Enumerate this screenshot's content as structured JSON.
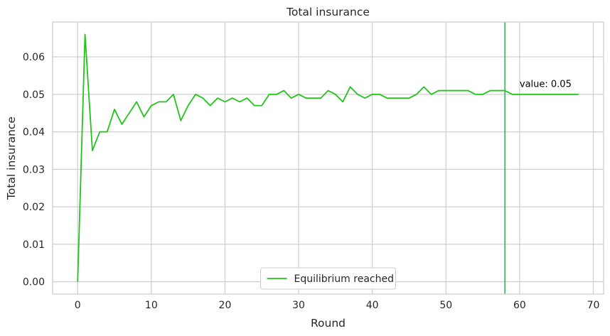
{
  "chart_data": {
    "type": "line",
    "title": "Total insurance",
    "xlabel": "Round",
    "ylabel": "Total insurance",
    "xlim": [
      -3.4,
      71.4
    ],
    "ylim": [
      -0.0033,
      0.0693
    ],
    "xticks": [
      0,
      10,
      20,
      30,
      40,
      50,
      60,
      70
    ],
    "yticks": [
      0.0,
      0.01,
      0.02,
      0.03,
      0.04,
      0.05,
      0.06
    ],
    "ytick_labels": [
      "0.00",
      "0.01",
      "0.02",
      "0.03",
      "0.04",
      "0.05",
      "0.06"
    ],
    "grid": true,
    "legend_position": "lower center",
    "series": [
      {
        "name": "Equilibrium reached",
        "color": "#22c41a",
        "x": [
          0,
          1,
          2,
          3,
          4,
          5,
          6,
          7,
          8,
          9,
          10,
          11,
          12,
          13,
          14,
          15,
          16,
          17,
          18,
          19,
          20,
          21,
          22,
          23,
          24,
          25,
          26,
          27,
          28,
          29,
          30,
          31,
          32,
          33,
          34,
          35,
          36,
          37,
          38,
          39,
          40,
          41,
          42,
          43,
          44,
          45,
          46,
          47,
          48,
          49,
          50,
          51,
          52,
          53,
          54,
          55,
          56,
          57,
          58,
          59,
          60,
          61,
          62,
          63,
          64,
          65,
          66,
          67,
          68
        ],
        "values": [
          0.0,
          0.066,
          0.035,
          0.04,
          0.04,
          0.046,
          0.042,
          0.045,
          0.048,
          0.044,
          0.047,
          0.048,
          0.048,
          0.05,
          0.043,
          0.047,
          0.05,
          0.049,
          0.047,
          0.049,
          0.048,
          0.049,
          0.048,
          0.049,
          0.047,
          0.047,
          0.05,
          0.05,
          0.051,
          0.049,
          0.05,
          0.049,
          0.049,
          0.049,
          0.051,
          0.05,
          0.048,
          0.052,
          0.05,
          0.049,
          0.05,
          0.05,
          0.049,
          0.049,
          0.049,
          0.049,
          0.05,
          0.052,
          0.05,
          0.051,
          0.051,
          0.051,
          0.051,
          0.051,
          0.05,
          0.05,
          0.051,
          0.051,
          0.051,
          0.05,
          0.05,
          0.05,
          0.05,
          0.05,
          0.05,
          0.05,
          0.05,
          0.05,
          0.05
        ]
      }
    ],
    "vline": {
      "x": 58,
      "color": "#3cb55a"
    },
    "annotation": {
      "text": "value: 0.05",
      "x": 60,
      "y": 0.052
    }
  }
}
